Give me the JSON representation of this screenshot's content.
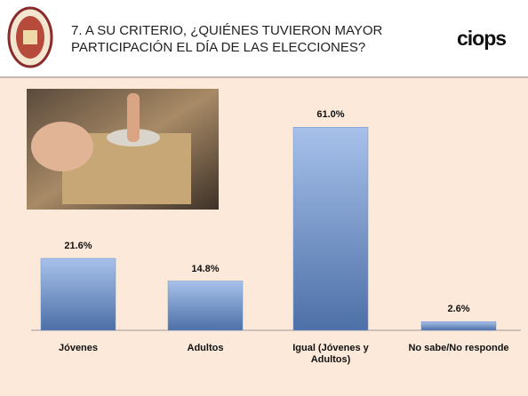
{
  "chart_data": {
    "type": "bar",
    "title": [
      "7. A SU CRITERIO, ¿QUIÉNES TUVIERON MAYOR",
      "PARTICIPACIÓN EL DÍA DE LAS ELECCIONES?"
    ],
    "brand": "ciops",
    "categories": [
      "Jóvenes",
      "Adultos",
      "Igual (Jóvenes y Adultos)",
      "No sabe/No responde"
    ],
    "values": [
      21.6,
      14.8,
      61.0,
      2.6
    ],
    "value_labels": [
      "21.6%",
      "14.8%",
      "61.0%",
      "2.6%"
    ],
    "color": "#6f93c9"
  }
}
